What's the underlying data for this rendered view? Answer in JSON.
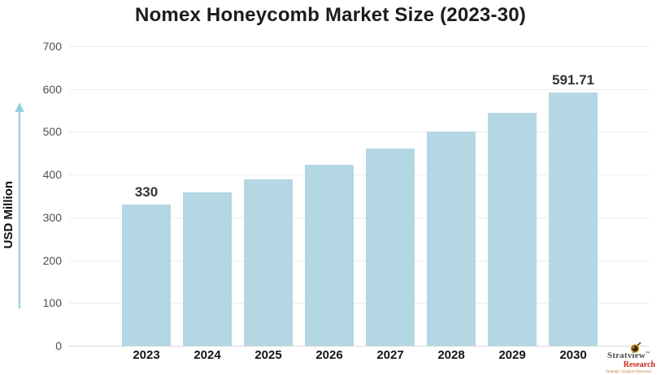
{
  "chart_data": {
    "type": "bar",
    "title": "Nomex Honeycomb Market Size (2023-30)",
    "ylabel": "USD Million",
    "categories": [
      "2023",
      "2024",
      "2025",
      "2026",
      "2027",
      "2028",
      "2029",
      "2030"
    ],
    "values": [
      330,
      358.7,
      389.9,
      423.8,
      460.7,
      500.8,
      544.4,
      591.71
    ],
    "data_labels": [
      "330",
      "",
      "",
      "",
      "",
      "",
      "",
      "591.71"
    ],
    "ylim": [
      0,
      700
    ],
    "yticks": [
      0,
      100,
      200,
      300,
      400,
      500,
      600,
      700
    ],
    "grid": true,
    "legend": "none",
    "bar_color": "#b4d7e4"
  },
  "colors": {
    "bar": "#b4d7e4",
    "gridline": "#ececec",
    "zero_line": "#d9d9d9",
    "axis_arrow": "#96d0db",
    "title_text": "#1c1c1c",
    "logo_red": "#c5281c"
  },
  "branding": {
    "name": "Stratview",
    "tm": "™",
    "sub": "Research",
    "tagline": "Strategic Insights Delivered"
  }
}
